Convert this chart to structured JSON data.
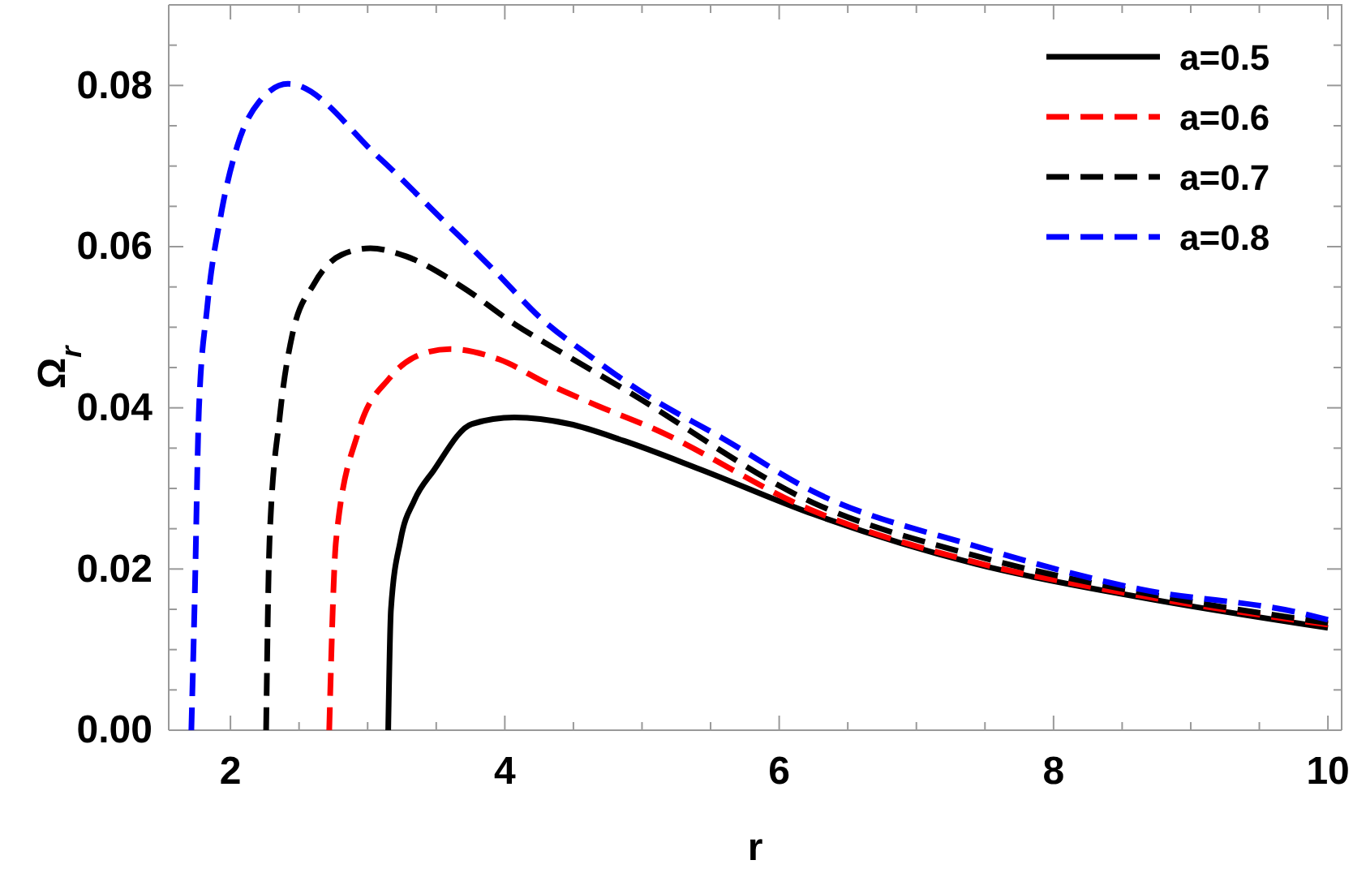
{
  "chart_data": {
    "type": "line",
    "xlabel": "r",
    "ylabel": "Ω$_{r}$",
    "xlim": [
      1.55,
      10.1
    ],
    "ylim": [
      0,
      0.09
    ],
    "xticks": [
      2,
      {
        "value": 2.5,
        "label": null
      },
      {
        "value": 3,
        "label": null
      },
      {
        "value": 3.5,
        "label": null
      },
      4,
      {
        "value": 4.5,
        "label": null
      },
      {
        "value": 5,
        "label": null
      },
      {
        "value": 5.5,
        "label": null
      },
      6,
      {
        "value": 6.5,
        "label": null
      },
      {
        "value": 7,
        "label": null
      },
      {
        "value": 7.5,
        "label": null
      },
      8,
      {
        "value": 8.5,
        "label": null
      },
      {
        "value": 9,
        "label": null
      },
      {
        "value": 9.5,
        "label": null
      },
      10
    ],
    "yticks": [
      {
        "value": 0,
        "label": "0.00"
      },
      {
        "value": 0.005,
        "label": null
      },
      {
        "value": 0.01,
        "label": null
      },
      {
        "value": 0.015,
        "label": null
      },
      {
        "value": 0.02,
        "label": "0.02"
      },
      {
        "value": 0.025,
        "label": null
      },
      {
        "value": 0.03,
        "label": null
      },
      {
        "value": 0.035,
        "label": null
      },
      {
        "value": 0.04,
        "label": "0.04"
      },
      {
        "value": 0.045,
        "label": null
      },
      {
        "value": 0.05,
        "label": null
      },
      {
        "value": 0.055,
        "label": null
      },
      {
        "value": 0.06,
        "label": "0.06"
      },
      {
        "value": 0.065,
        "label": null
      },
      {
        "value": 0.07,
        "label": null
      },
      {
        "value": 0.075,
        "label": null
      },
      {
        "value": 0.08,
        "label": "0.08"
      },
      {
        "value": 0.085,
        "label": null
      }
    ],
    "grid": false,
    "legend": "top right",
    "marker": "none",
    "series": [
      {
        "name": "a=0.5",
        "color": "#000000",
        "line_style": "solid",
        "x": [
          3.15,
          3.17,
          3.24,
          3.34,
          3.48,
          3.76,
          4.07,
          4.47,
          4.87,
          5.42,
          6.25,
          7.44,
          8.63,
          10
        ],
        "values": [
          0,
          0.015,
          0.0236,
          0.0285,
          0.0322,
          0.038,
          0.0388,
          0.038,
          0.0359,
          0.0324,
          0.0268,
          0.0206,
          0.0165,
          0.0127
        ]
      },
      {
        "name": "a=0.6",
        "color": "#ff0000",
        "line_style": "dashed",
        "x": [
          2.72,
          2.77,
          2.93,
          3.16,
          3.4,
          3.6,
          3.96,
          4.31,
          4.67,
          5.06,
          6.25,
          7.44,
          8.63,
          10
        ],
        "values": [
          0,
          0.0236,
          0.0369,
          0.0437,
          0.0467,
          0.0473,
          0.046,
          0.043,
          0.0403,
          0.0376,
          0.0272,
          0.0208,
          0.0167,
          0.0131
        ]
      },
      {
        "name": "a=0.7",
        "color": "#000000",
        "line_style": "dashed",
        "x": [
          2.26,
          2.285,
          2.36,
          2.45,
          2.61,
          2.81,
          3.02,
          3.28,
          3.68,
          4.07,
          4.47,
          4.87,
          6.25,
          7.44,
          8.63,
          10
        ],
        "values": [
          0,
          0.0236,
          0.039,
          0.049,
          0.0554,
          0.059,
          0.0598,
          0.0588,
          0.0551,
          0.0504,
          0.0463,
          0.0423,
          0.0282,
          0.0216,
          0.0171,
          0.0133
        ]
      },
      {
        "name": "a=0.8",
        "color": "#0000ff",
        "line_style": "dashed",
        "x": [
          1.715,
          1.74,
          1.77,
          1.83,
          1.93,
          2.05,
          2.21,
          2.42,
          3.08,
          3.56,
          3.92,
          4.27,
          4.63,
          5.02,
          5.58,
          6.25,
          7.44,
          8.63,
          9.81,
          10
        ],
        "values": [
          0,
          0.0167,
          0.0397,
          0.0524,
          0.0639,
          0.0725,
          0.078,
          0.0802,
          0.0711,
          0.0631,
          0.0571,
          0.051,
          0.0463,
          0.0417,
          0.0363,
          0.0296,
          0.0228,
          0.0175,
          0.0145,
          0.0137
        ]
      }
    ]
  }
}
